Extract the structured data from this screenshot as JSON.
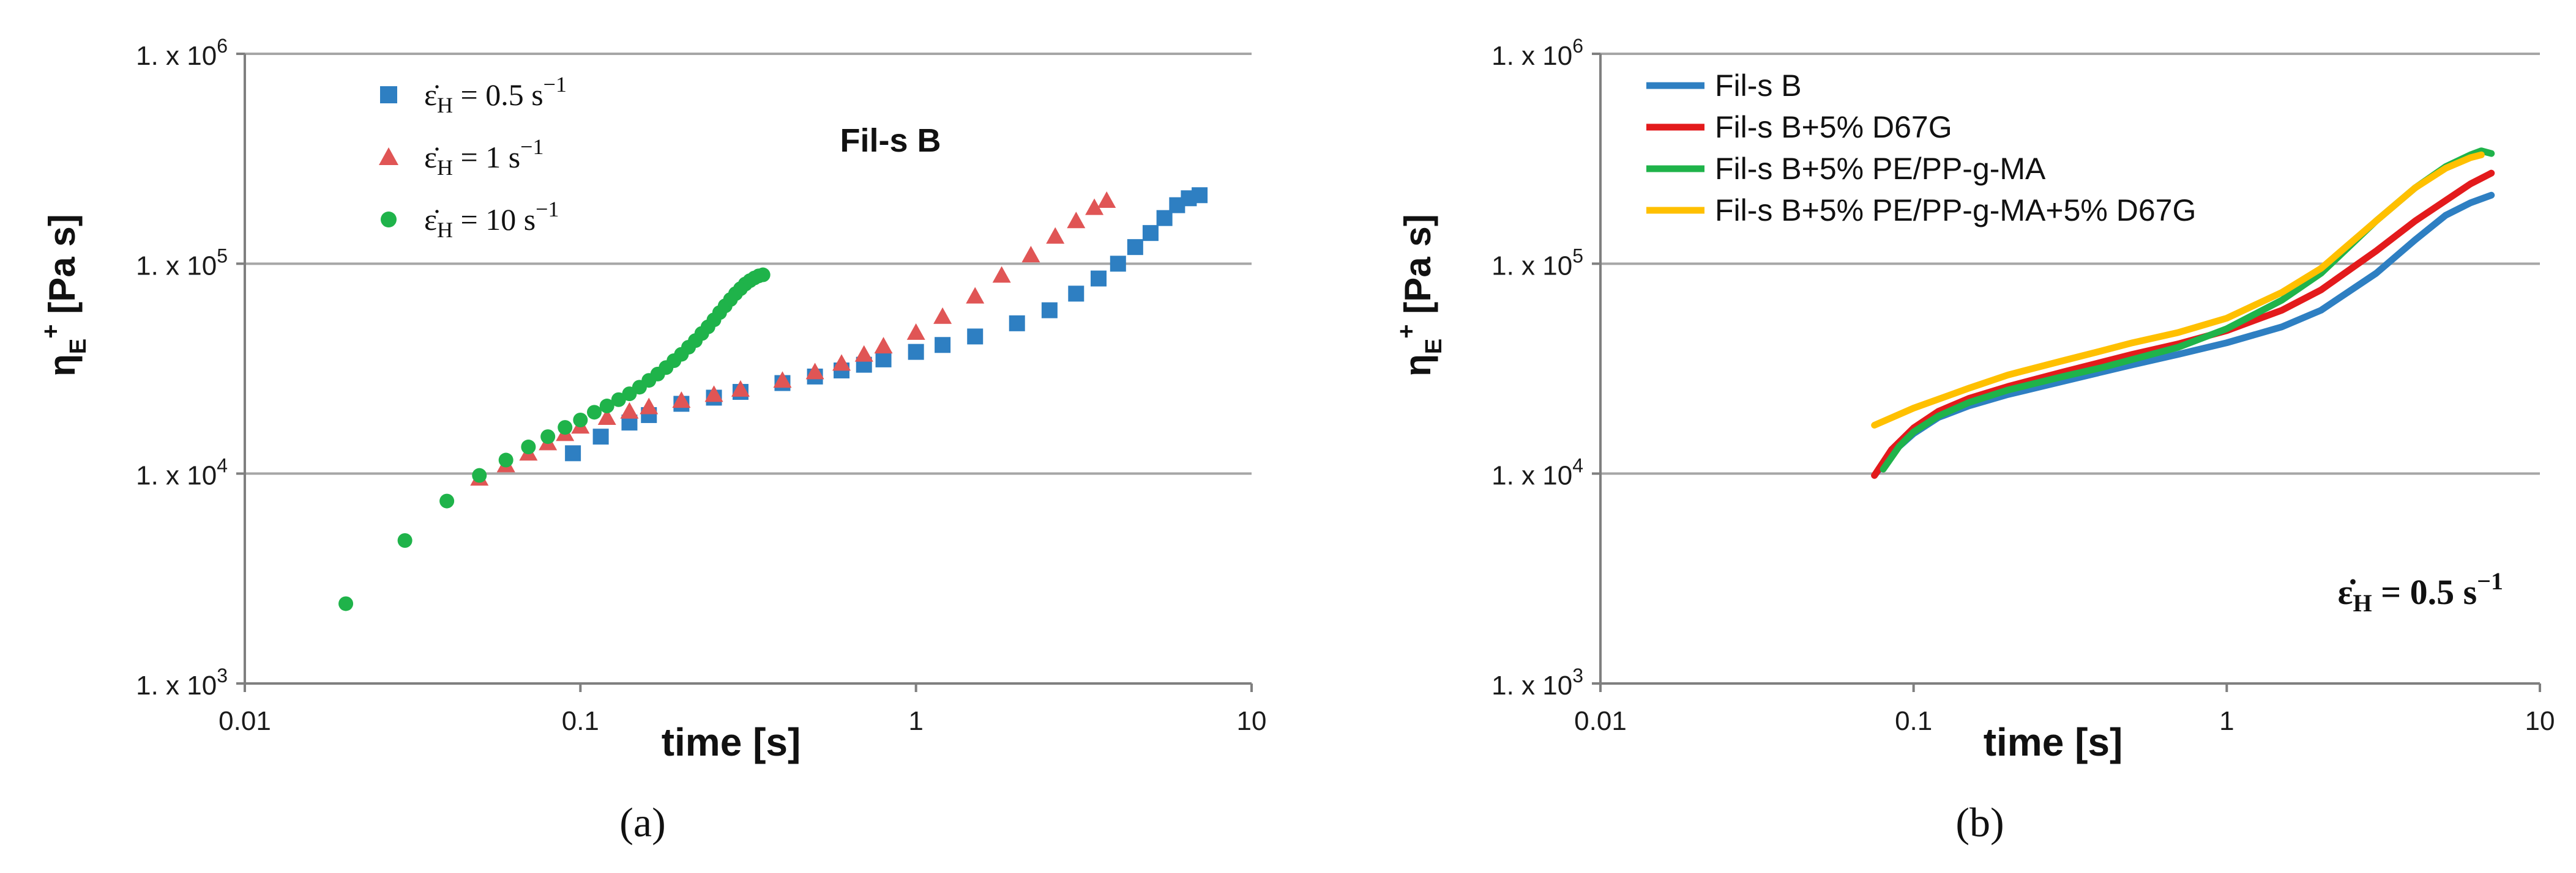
{
  "colors": {
    "blue": "#2e7fc2",
    "red": "#d62728",
    "red_marker": "#e05555",
    "green": "#1fb34a",
    "yellow": "#ffc000",
    "grid": "#a6a6a6",
    "axis": "#7f7f7f"
  },
  "chart_data": [
    {
      "id": "a",
      "type": "scatter",
      "caption": "(a)",
      "annotation": "Fil-s B",
      "xscale": "log",
      "yscale": "log",
      "xlim": [
        0.01,
        10
      ],
      "ylim": [
        1000,
        1000000
      ],
      "xticks": [
        0.01,
        0.1,
        1,
        10
      ],
      "xtick_labels": [
        "0.01",
        "0.1",
        "1",
        "10"
      ],
      "yticks": [
        1000,
        10000,
        100000,
        1000000
      ],
      "ytick_labels": [
        {
          "base": "1. x 10",
          "exp": "3"
        },
        {
          "base": "1. x 10",
          "exp": "4"
        },
        {
          "base": "1. x 10",
          "exp": "5"
        },
        {
          "base": "1. x 10",
          "exp": "6"
        }
      ],
      "xlabel": "time [s]",
      "ylabel": {
        "main": "η",
        "sub": "E",
        "sup": "+",
        "units": " [Pa s]"
      },
      "grid": "horizontal",
      "legend_position": "top-left",
      "series": [
        {
          "name": "ε̇H = 0.5 s−1",
          "label": {
            "sym": "ε̇",
            "sub": "H",
            "text": " = 0.5 s",
            "sup": "−1"
          },
          "marker": "square",
          "color": "#2e7fc2",
          "points": [
            [
              0.095,
              12500
            ],
            [
              0.115,
              15000
            ],
            [
              0.14,
              17500
            ],
            [
              0.16,
              19000
            ],
            [
              0.2,
              21500
            ],
            [
              0.25,
              23000
            ],
            [
              0.3,
              24500
            ],
            [
              0.4,
              27000
            ],
            [
              0.5,
              29000
            ],
            [
              0.6,
              31000
            ],
            [
              0.7,
              33000
            ],
            [
              0.8,
              35000
            ],
            [
              1.0,
              38000
            ],
            [
              1.2,
              41000
            ],
            [
              1.5,
              45000
            ],
            [
              2.0,
              52000
            ],
            [
              2.5,
              60000
            ],
            [
              3.0,
              72000
            ],
            [
              3.5,
              85000
            ],
            [
              4.0,
              100000
            ],
            [
              4.5,
              120000
            ],
            [
              5.0,
              140000
            ],
            [
              5.5,
              165000
            ],
            [
              6.0,
              190000
            ],
            [
              6.5,
              205000
            ],
            [
              7.0,
              212000
            ]
          ]
        },
        {
          "name": "ε̇H = 1 s−1",
          "label": {
            "sym": "ε̇",
            "sub": "H",
            "text": " = 1 s",
            "sup": "−1"
          },
          "marker": "triangle",
          "color": "#e05555",
          "points": [
            [
              0.05,
              9500
            ],
            [
              0.06,
              11000
            ],
            [
              0.07,
              12500
            ],
            [
              0.08,
              14000
            ],
            [
              0.09,
              15500
            ],
            [
              0.1,
              16800
            ],
            [
              0.12,
              18500
            ],
            [
              0.14,
              19800
            ],
            [
              0.16,
              20800
            ],
            [
              0.2,
              22300
            ],
            [
              0.25,
              23800
            ],
            [
              0.3,
              25200
            ],
            [
              0.4,
              27800
            ],
            [
              0.5,
              30500
            ],
            [
              0.6,
              33500
            ],
            [
              0.7,
              37000
            ],
            [
              0.8,
              40500
            ],
            [
              1.0,
              47000
            ],
            [
              1.2,
              56000
            ],
            [
              1.5,
              70000
            ],
            [
              1.8,
              88000
            ],
            [
              2.2,
              110000
            ],
            [
              2.6,
              135000
            ],
            [
              3.0,
              160000
            ],
            [
              3.4,
              185000
            ],
            [
              3.7,
              200000
            ]
          ]
        },
        {
          "name": "ε̇H = 10 s−1",
          "label": {
            "sym": "ε̇",
            "sub": "H",
            "text": " = 10 s",
            "sup": "−1"
          },
          "marker": "circle",
          "color": "#1fb34a",
          "points": [
            [
              0.02,
              2400
            ],
            [
              0.03,
              4800
            ],
            [
              0.04,
              7400
            ],
            [
              0.05,
              9800
            ],
            [
              0.06,
              11600
            ],
            [
              0.07,
              13400
            ],
            [
              0.08,
              15000
            ],
            [
              0.09,
              16600
            ],
            [
              0.1,
              18000
            ],
            [
              0.11,
              19600
            ],
            [
              0.12,
              21000
            ],
            [
              0.13,
              22500
            ],
            [
              0.14,
              24000
            ],
            [
              0.15,
              25800
            ],
            [
              0.16,
              27800
            ],
            [
              0.17,
              29800
            ],
            [
              0.18,
              32000
            ],
            [
              0.19,
              34500
            ],
            [
              0.2,
              37000
            ],
            [
              0.21,
              40000
            ],
            [
              0.22,
              43000
            ],
            [
              0.23,
              46500
            ],
            [
              0.24,
              50000
            ],
            [
              0.25,
              54000
            ],
            [
              0.26,
              58500
            ],
            [
              0.27,
              63000
            ],
            [
              0.28,
              67500
            ],
            [
              0.29,
              72000
            ],
            [
              0.3,
              76000
            ],
            [
              0.31,
              80000
            ],
            [
              0.32,
              83000
            ],
            [
              0.33,
              85500
            ],
            [
              0.34,
              87500
            ],
            [
              0.35,
              88500
            ]
          ]
        }
      ]
    },
    {
      "id": "b",
      "type": "line",
      "caption": "(b)",
      "annotation": {
        "sym": "ε̇",
        "sub": "H",
        "text": " = 0.5 s",
        "sup": "−1"
      },
      "xscale": "log",
      "yscale": "log",
      "xlim": [
        0.01,
        10
      ],
      "ylim": [
        1000,
        1000000
      ],
      "xticks": [
        0.01,
        0.1,
        1,
        10
      ],
      "xtick_labels": [
        "0.01",
        "0.1",
        "1",
        "10"
      ],
      "yticks": [
        1000,
        10000,
        100000,
        1000000
      ],
      "ytick_labels": [
        {
          "base": "1. x 10",
          "exp": "3"
        },
        {
          "base": "1. x 10",
          "exp": "4"
        },
        {
          "base": "1. x 10",
          "exp": "5"
        },
        {
          "base": "1. x 10",
          "exp": "6"
        }
      ],
      "xlabel": "time [s]",
      "ylabel": {
        "main": "η",
        "sub": "E",
        "sup": "+",
        "units": " [Pa s]"
      },
      "grid": "horizontal",
      "legend_position": "top-left",
      "series": [
        {
          "name": "Fil-s B",
          "color": "#2e7fc2",
          "points": [
            [
              0.075,
              9800
            ],
            [
              0.085,
              12500
            ],
            [
              0.1,
              15500
            ],
            [
              0.12,
              18500
            ],
            [
              0.15,
              21000
            ],
            [
              0.2,
              23800
            ],
            [
              0.3,
              27500
            ],
            [
              0.4,
              30500
            ],
            [
              0.5,
              33000
            ],
            [
              0.7,
              37000
            ],
            [
              1.0,
              42000
            ],
            [
              1.5,
              50000
            ],
            [
              2.0,
              60000
            ],
            [
              3.0,
              90000
            ],
            [
              4.0,
              130000
            ],
            [
              5.0,
              170000
            ],
            [
              6.0,
              195000
            ],
            [
              7.0,
              212000
            ]
          ]
        },
        {
          "name": "Fil-s B+5% D67G",
          "color": "#e31a1c",
          "points": [
            [
              0.075,
              9800
            ],
            [
              0.085,
              13000
            ],
            [
              0.1,
              16500
            ],
            [
              0.12,
              19800
            ],
            [
              0.15,
              22800
            ],
            [
              0.2,
              26000
            ],
            [
              0.3,
              30500
            ],
            [
              0.4,
              34000
            ],
            [
              0.5,
              37000
            ],
            [
              0.7,
              41500
            ],
            [
              1.0,
              48000
            ],
            [
              1.5,
              60000
            ],
            [
              2.0,
              75000
            ],
            [
              3.0,
              115000
            ],
            [
              4.0,
              160000
            ],
            [
              5.0,
              200000
            ],
            [
              6.0,
              240000
            ],
            [
              7.0,
              270000
            ]
          ]
        },
        {
          "name": "Fil-s B+5% PE/PP-g-MA",
          "color": "#1fb34a",
          "points": [
            [
              0.08,
              10500
            ],
            [
              0.09,
              13500
            ],
            [
              0.1,
              15800
            ],
            [
              0.12,
              18800
            ],
            [
              0.15,
              21800
            ],
            [
              0.2,
              25000
            ],
            [
              0.3,
              29000
            ],
            [
              0.4,
              32000
            ],
            [
              0.5,
              35000
            ],
            [
              0.7,
              40000
            ],
            [
              1.0,
              49000
            ],
            [
              1.5,
              67000
            ],
            [
              2.0,
              90000
            ],
            [
              3.0,
              160000
            ],
            [
              4.0,
              230000
            ],
            [
              5.0,
              290000
            ],
            [
              6.0,
              330000
            ],
            [
              6.5,
              345000
            ],
            [
              7.0,
              335000
            ]
          ]
        },
        {
          "name": "Fil-s B+5% PE/PP-g-MA+5% D67G",
          "color": "#ffc000",
          "points": [
            [
              0.075,
              17000
            ],
            [
              0.1,
              20500
            ],
            [
              0.15,
              25500
            ],
            [
              0.2,
              29500
            ],
            [
              0.3,
              34500
            ],
            [
              0.4,
              38500
            ],
            [
              0.5,
              42000
            ],
            [
              0.7,
              47000
            ],
            [
              1.0,
              55000
            ],
            [
              1.5,
              73000
            ],
            [
              2.0,
              95000
            ],
            [
              3.0,
              160000
            ],
            [
              4.0,
              230000
            ],
            [
              5.0,
              285000
            ],
            [
              6.0,
              320000
            ],
            [
              6.5,
              330000
            ]
          ]
        }
      ]
    }
  ]
}
